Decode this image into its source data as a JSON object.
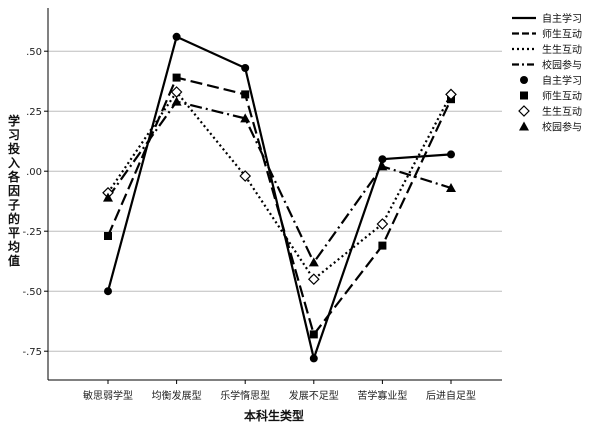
{
  "chart_data": {
    "type": "line",
    "title": "",
    "xlabel": "本科生类型",
    "ylabel": "学习投入各因子的平均值",
    "categories": [
      "敏思弱学型",
      "均衡发展型",
      "乐学惰思型",
      "发展不足型",
      "苦学寡业型",
      "后进自足型"
    ],
    "yticks": [
      0.5,
      0.25,
      0.0,
      -0.25,
      -0.5,
      -0.75
    ],
    "ytick_labels": [
      ".50",
      ".25",
      ".00",
      "-.25",
      "-.50",
      "-.75"
    ],
    "ylim": [
      -0.87,
      0.68
    ],
    "grid": true,
    "legend_position": "right",
    "series": [
      {
        "name": "自主学习",
        "line_style": "solid",
        "marker": "circle",
        "color": "#000000",
        "values": [
          -0.5,
          0.56,
          0.43,
          -0.78,
          0.05,
          0.07
        ]
      },
      {
        "name": "师生互动",
        "line_style": "dashed",
        "marker": "square",
        "color": "#000000",
        "values": [
          -0.27,
          0.39,
          0.32,
          -0.68,
          -0.31,
          0.3
        ]
      },
      {
        "name": "生生互动",
        "line_style": "dotted",
        "marker": "diamond",
        "color": "#000000",
        "values": [
          -0.09,
          0.33,
          -0.02,
          -0.45,
          -0.22,
          0.32
        ]
      },
      {
        "name": "校园参与",
        "line_style": "dashdot",
        "marker": "triangle",
        "color": "#000000",
        "values": [
          -0.11,
          0.29,
          0.22,
          -0.38,
          0.02,
          -0.07
        ]
      }
    ]
  }
}
